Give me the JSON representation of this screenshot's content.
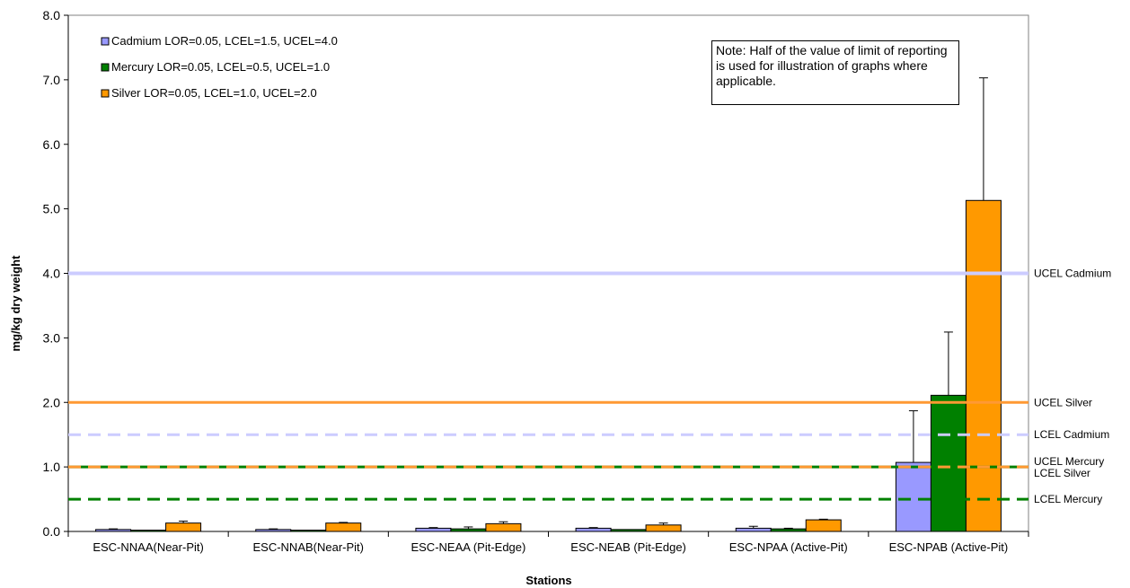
{
  "chart_data": {
    "type": "bar",
    "title": "",
    "xlabel": "Stations",
    "ylabel": "mg/kg dry weight",
    "ylim": [
      0,
      8
    ],
    "yticks": [
      "0.0",
      "1.0",
      "2.0",
      "3.0",
      "4.0",
      "5.0",
      "6.0",
      "7.0",
      "8.0"
    ],
    "grid": false,
    "legend_placement": "top-left",
    "categories": [
      "ESC-NNAA(Near-Pit)",
      "ESC-NNAB(Near-Pit)",
      "ESC-NEAA (Pit-Edge)",
      "ESC-NEAB (Pit-Edge)",
      "ESC-NPAA (Active-Pit)",
      "ESC-NPAB (Active-Pit)"
    ],
    "series": [
      {
        "name": "Cadmium LOR=0.05, LCEL=1.5, UCEL=4.0",
        "color": "#9999ff",
        "values": [
          0.03,
          0.03,
          0.05,
          0.05,
          0.05,
          1.07
        ],
        "error": [
          0.01,
          0.01,
          0.01,
          0.01,
          0.03,
          0.8
        ]
      },
      {
        "name": "Mercury LOR=0.05, LCEL=0.5, UCEL=1.0",
        "color": "#008000",
        "values": [
          0.02,
          0.02,
          0.04,
          0.03,
          0.04,
          2.11
        ],
        "error": [
          0.0,
          0.0,
          0.03,
          0.0,
          0.01,
          0.98
        ]
      },
      {
        "name": "Silver LOR=0.05, LCEL=1.0, UCEL=2.0",
        "color": "#ff9900",
        "values": [
          0.13,
          0.13,
          0.12,
          0.1,
          0.18,
          5.13
        ],
        "error": [
          0.03,
          0.01,
          0.03,
          0.03,
          0.01,
          1.9
        ]
      }
    ],
    "reference_lines": [
      {
        "label": "UCEL Cadmium",
        "value": 4.0,
        "color": "#ccccff",
        "style": "solid"
      },
      {
        "label": "UCEL Silver",
        "value": 2.0,
        "color": "#ff9933",
        "style": "solid"
      },
      {
        "label": "LCEL Cadmium",
        "value": 1.5,
        "color": "#ccccff",
        "style": "dashed"
      },
      {
        "label": "UCEL Mercury",
        "value": 1.0,
        "color": "#008000",
        "style": "solid"
      },
      {
        "label": "LCEL Silver",
        "value": 1.0,
        "color": "#ff9933",
        "style": "dashed"
      },
      {
        "label": "LCEL Mercury",
        "value": 0.5,
        "color": "#008000",
        "style": "dashed"
      }
    ],
    "note": "Note: Half of the value of limit of reporting is used for illustration of graphs where applicable."
  }
}
